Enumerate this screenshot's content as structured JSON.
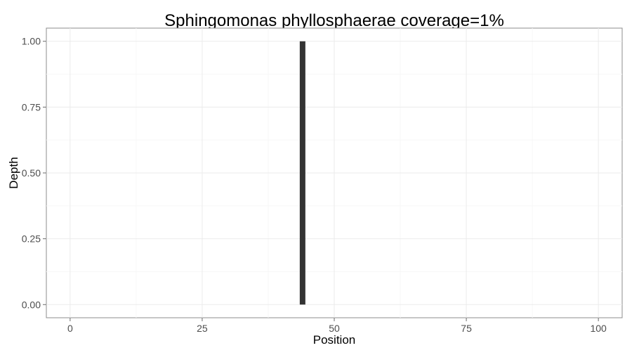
{
  "chart_data": {
    "type": "bar",
    "title": "Sphingomonas phyllosphaerae coverage=1%",
    "xlabel": "Position",
    "ylabel": "Depth",
    "xlim": [
      -4.5,
      104.5
    ],
    "ylim": [
      -0.05,
      1.05
    ],
    "x_ticks": [
      0,
      25,
      50,
      75,
      100
    ],
    "x_tick_labels": [
      "0",
      "25",
      "50",
      "75",
      "100"
    ],
    "y_ticks": [
      0,
      0.25,
      0.5,
      0.75,
      1.0
    ],
    "y_tick_labels": [
      "0.00",
      "0.25",
      "0.50",
      "0.75",
      "1.00"
    ],
    "grid": true,
    "bar_color": "#333333",
    "x": [
      44
    ],
    "values": [
      1
    ]
  }
}
